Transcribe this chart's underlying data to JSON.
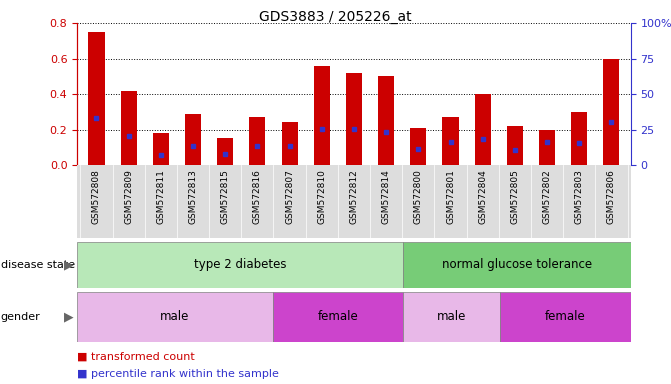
{
  "title": "GDS3883 / 205226_at",
  "samples": [
    "GSM572808",
    "GSM572809",
    "GSM572811",
    "GSM572813",
    "GSM572815",
    "GSM572816",
    "GSM572807",
    "GSM572810",
    "GSM572812",
    "GSM572814",
    "GSM572800",
    "GSM572801",
    "GSM572804",
    "GSM572805",
    "GSM572802",
    "GSM572803",
    "GSM572806"
  ],
  "transformed_count": [
    0.75,
    0.42,
    0.18,
    0.29,
    0.15,
    0.27,
    0.24,
    0.56,
    0.52,
    0.5,
    0.21,
    0.27,
    0.4,
    0.22,
    0.2,
    0.3,
    0.6
  ],
  "percentile_rank": [
    0.265,
    0.165,
    0.055,
    0.105,
    0.06,
    0.11,
    0.11,
    0.205,
    0.205,
    0.185,
    0.09,
    0.13,
    0.145,
    0.085,
    0.13,
    0.125,
    0.24
  ],
  "bar_color": "#cc0000",
  "dot_color": "#3333cc",
  "ylim_left": [
    0,
    0.8
  ],
  "ylim_right": [
    0,
    100
  ],
  "yticks_left": [
    0,
    0.2,
    0.4,
    0.6,
    0.8
  ],
  "yticks_right": [
    0,
    25,
    50,
    75,
    100
  ],
  "disease_state_groups": [
    {
      "label": "type 2 diabetes",
      "start": 0,
      "end": 10,
      "color": "#b8e8b8"
    },
    {
      "label": "normal glucose tolerance",
      "start": 10,
      "end": 17,
      "color": "#77cc77"
    }
  ],
  "gender_groups": [
    {
      "label": "male",
      "start": 0,
      "end": 6,
      "color": "#e8b8e8"
    },
    {
      "label": "female",
      "start": 6,
      "end": 10,
      "color": "#cc44cc"
    },
    {
      "label": "male",
      "start": 10,
      "end": 13,
      "color": "#e8b8e8"
    },
    {
      "label": "female",
      "start": 13,
      "end": 17,
      "color": "#cc44cc"
    }
  ],
  "legend_items": [
    {
      "label": "transformed count",
      "color": "#cc0000"
    },
    {
      "label": "percentile rank within the sample",
      "color": "#3333cc"
    }
  ],
  "left_axis_color": "#cc0000",
  "right_axis_color": "#3333cc",
  "xtick_bg_color": "#dddddd",
  "bar_width": 0.5
}
